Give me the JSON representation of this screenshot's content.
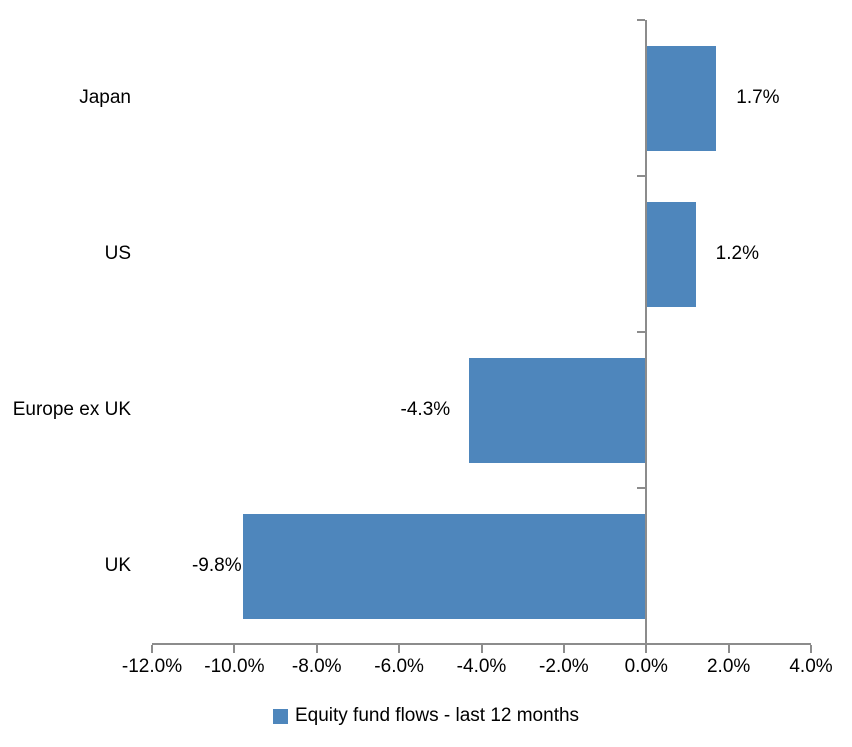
{
  "chart_data": {
    "type": "bar",
    "orientation": "horizontal",
    "categories": [
      "Japan",
      "US",
      "Europe ex UK",
      "UK"
    ],
    "values": [
      1.7,
      1.2,
      -4.3,
      -9.8
    ],
    "data_labels": [
      "1.7%",
      "1.2%",
      "-4.3%",
      "-9.8%"
    ],
    "xlim": [
      -12,
      4
    ],
    "x_tick_step": 2,
    "x_tick_labels": [
      "-12.0%",
      "-10.0%",
      "-8.0%",
      "-6.0%",
      "-4.0%",
      "-2.0%",
      "0.0%",
      "2.0%",
      "4.0%"
    ],
    "grid": false,
    "legend_position": "bottom",
    "legend": {
      "label": "Equity fund flows - last 12 months",
      "marker_color": "#4E86BC"
    },
    "title": "",
    "xlabel": "",
    "ylabel": "",
    "bar_color": "#4E86BC",
    "axis_color": "#8C8C8C",
    "text_color": "#000000",
    "background_color": "#FFFFFF"
  }
}
